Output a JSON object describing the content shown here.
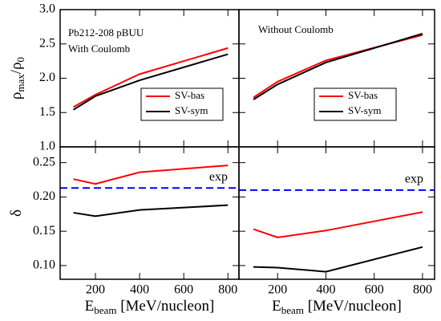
{
  "chart_data": [
    {
      "type": "line",
      "x": [
        100,
        200,
        400,
        800
      ],
      "xlim": [
        40,
        850
      ],
      "xticks": [
        200,
        400,
        600,
        800
      ],
      "ylim": [
        1.0,
        3.0
      ],
      "yticks": [
        {
          "value": 1.0,
          "label": "1.0"
        },
        1.5,
        {
          "value": 2.0,
          "label": "2.0"
        },
        2.5,
        {
          "value": 3.0,
          "label": "3.0"
        }
      ],
      "ylabel": [
        {
          "text": "ρ"
        },
        {
          "text": "max",
          "sub": true
        },
        {
          "text": "/ρ"
        },
        {
          "text": "0",
          "sub": true
        }
      ],
      "annotations": [
        "Pb212-208 pBUU",
        "With Coulomb"
      ],
      "legend": true,
      "series": [
        {
          "name": "SV-bas",
          "color": "#ff0000",
          "values": [
            1.58,
            1.76,
            2.06,
            2.44
          ]
        },
        {
          "name": "SV-sym",
          "color": "#000000",
          "values": [
            1.54,
            1.74,
            1.97,
            2.35
          ]
        }
      ]
    },
    {
      "type": "line",
      "x": [
        100,
        200,
        400,
        800
      ],
      "xlim": [
        40,
        850
      ],
      "xticks": [
        200,
        400,
        600,
        800
      ],
      "ylim": [
        1.0,
        3.0
      ],
      "yticks": [
        1.5,
        2,
        2.5
      ],
      "annotations": [
        "Without Coulomb"
      ],
      "legend": true,
      "series": [
        {
          "name": "SV-bas",
          "color": "#ff0000",
          "values": [
            1.72,
            1.95,
            2.26,
            2.63
          ]
        },
        {
          "name": "SV-sym",
          "color": "#000000",
          "values": [
            1.69,
            1.91,
            2.23,
            2.65
          ]
        }
      ]
    },
    {
      "type": "line",
      "x": [
        100,
        200,
        400,
        800
      ],
      "xlim": [
        40,
        850
      ],
      "xticks": [
        200,
        400,
        600,
        800
      ],
      "xlabel": [
        {
          "text": "E"
        },
        {
          "text": "beam",
          "sub": true
        },
        {
          "text": " [MeV/nucleon]"
        }
      ],
      "ylim": [
        0.08,
        0.273
      ],
      "yticks": [
        {
          "value": 0.1,
          "label": "0.10"
        },
        0.15,
        {
          "value": 0.2,
          "label": "0.20"
        },
        0.25
      ],
      "ylabel": [
        {
          "text": "δ"
        }
      ],
      "legend": false,
      "reference_lines": [
        {
          "label": "exp",
          "value": 0.213,
          "color": "#0000ff",
          "dashed": true
        }
      ],
      "series": [
        {
          "name": "SV-bas",
          "color": "#ff0000",
          "values": [
            0.226,
            0.219,
            0.236,
            0.246
          ]
        },
        {
          "name": "SV-sym",
          "color": "#000000",
          "values": [
            0.177,
            0.172,
            0.181,
            0.188
          ]
        }
      ]
    },
    {
      "type": "line",
      "x": [
        100,
        200,
        400,
        800
      ],
      "xlim": [
        40,
        850
      ],
      "xticks": [
        200,
        400,
        600,
        800
      ],
      "xlabel": [
        {
          "text": "E"
        },
        {
          "text": "beam",
          "sub": true
        },
        {
          "text": " [MeV/nucleon]"
        }
      ],
      "ylim": [
        0.08,
        0.273
      ],
      "yticks": [
        0.1,
        0.15,
        0.2,
        0.25
      ],
      "legend": false,
      "reference_lines": [
        {
          "label": "exp",
          "value": 0.21,
          "color": "#0000ff",
          "dashed": true
        }
      ],
      "series": [
        {
          "name": "SV-bas",
          "color": "#ff0000",
          "values": [
            0.153,
            0.141,
            0.151,
            0.178
          ]
        },
        {
          "name": "SV-sym",
          "color": "#000000",
          "values": [
            0.098,
            0.097,
            0.091,
            0.127
          ]
        }
      ]
    }
  ]
}
